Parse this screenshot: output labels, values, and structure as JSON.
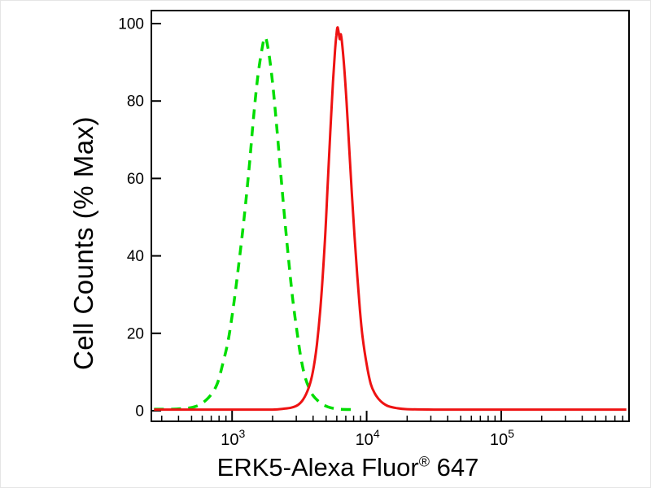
{
  "figure": {
    "background": "#ffffff",
    "border_color": "#000000"
  },
  "chart_data": {
    "type": "line",
    "title": "",
    "ylabel": "Cell Counts (% Max)",
    "xlabel": "ERK5-Alexa Fluor® 647",
    "xlabel_parts": {
      "main": "ERK5-Alexa Fluor",
      "sup": "®",
      "tail": " 647"
    },
    "x_scale": "log10",
    "xlim_log": [
      2.4,
      5.95
    ],
    "ylim": [
      0,
      100
    ],
    "grid": false,
    "legend": "none",
    "y_ticks": [
      0,
      20,
      40,
      60,
      80,
      100
    ],
    "x_major_ticks": [
      {
        "log": 3,
        "base": "10",
        "exp": "3"
      },
      {
        "log": 4,
        "base": "10",
        "exp": "4"
      },
      {
        "log": 5,
        "base": "10",
        "exp": "5"
      }
    ],
    "series": [
      {
        "name": "green-dashed-curve",
        "style": "dashed",
        "color": "#00dd00",
        "width": 3.5,
        "dash": "12 9",
        "peak": {
          "x_approx": 1760,
          "y_percent": 96.5
        },
        "points_logx_y": [
          [
            2.42,
            0.4
          ],
          [
            2.55,
            0.4
          ],
          [
            2.65,
            0.6
          ],
          [
            2.72,
            1
          ],
          [
            2.78,
            2
          ],
          [
            2.84,
            4
          ],
          [
            2.89,
            7
          ],
          [
            2.93,
            12
          ],
          [
            2.97,
            18
          ],
          [
            3.01,
            27
          ],
          [
            3.05,
            38
          ],
          [
            3.09,
            50
          ],
          [
            3.13,
            64
          ],
          [
            3.16,
            76
          ],
          [
            3.19,
            86
          ],
          [
            3.22,
            93
          ],
          [
            3.245,
            96.5
          ],
          [
            3.27,
            93
          ],
          [
            3.3,
            85
          ],
          [
            3.33,
            74
          ],
          [
            3.36,
            62
          ],
          [
            3.39,
            50
          ],
          [
            3.42,
            39
          ],
          [
            3.45,
            29
          ],
          [
            3.48,
            21
          ],
          [
            3.51,
            14
          ],
          [
            3.54,
            9
          ],
          [
            3.57,
            6
          ],
          [
            3.6,
            4
          ],
          [
            3.64,
            2.5
          ],
          [
            3.68,
            1.5
          ],
          [
            3.73,
            0.8
          ],
          [
            3.8,
            0.4
          ],
          [
            3.9,
            0.3
          ]
        ]
      },
      {
        "name": "red-solid-curve",
        "style": "solid",
        "color": "#ee1212",
        "width": 3,
        "dash": "",
        "peak": {
          "x_approx": 6100,
          "y_percent": 99
        },
        "points_logx_y": [
          [
            2.42,
            0.3
          ],
          [
            2.8,
            0.3
          ],
          [
            3.1,
            0.3
          ],
          [
            3.3,
            0.3
          ],
          [
            3.38,
            0.5
          ],
          [
            3.44,
            0.8
          ],
          [
            3.49,
            1.5
          ],
          [
            3.53,
            3
          ],
          [
            3.57,
            6
          ],
          [
            3.6,
            10
          ],
          [
            3.63,
            17
          ],
          [
            3.66,
            28
          ],
          [
            3.69,
            44
          ],
          [
            3.71,
            58
          ],
          [
            3.73,
            72
          ],
          [
            3.75,
            85
          ],
          [
            3.765,
            93
          ],
          [
            3.775,
            97
          ],
          [
            3.785,
            99
          ],
          [
            3.8,
            96
          ],
          [
            3.81,
            97
          ],
          [
            3.83,
            90
          ],
          [
            3.85,
            80
          ],
          [
            3.87,
            68
          ],
          [
            3.89,
            56
          ],
          [
            3.91,
            45
          ],
          [
            3.93,
            35
          ],
          [
            3.95,
            26
          ],
          [
            3.97,
            19
          ],
          [
            4.0,
            12
          ],
          [
            4.03,
            7
          ],
          [
            4.06,
            4.5
          ],
          [
            4.09,
            3
          ],
          [
            4.12,
            2
          ],
          [
            4.16,
            1.2
          ],
          [
            4.22,
            0.7
          ],
          [
            4.3,
            0.4
          ],
          [
            4.5,
            0.3
          ],
          [
            4.8,
            0.3
          ],
          [
            5.2,
            0.3
          ],
          [
            5.6,
            0.3
          ],
          [
            5.93,
            0.3
          ]
        ]
      }
    ]
  }
}
